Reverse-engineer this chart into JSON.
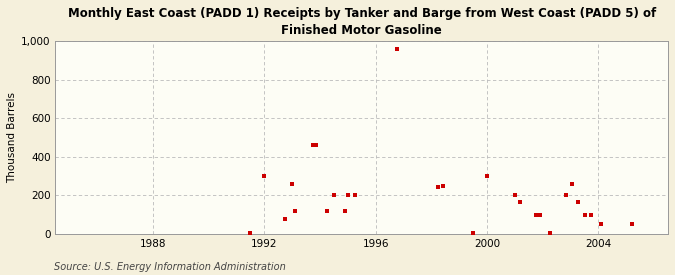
{
  "title": "East Coast (PADD 1) Receipts by Tanker and Barge from West Coast (PADD 5) of\nFinished Motor Gasoline",
  "title_prefix": "Monthly ",
  "ylabel": "Thousand Barrels",
  "source": "Source: U.S. Energy Information Administration",
  "background_color": "#f5f0dc",
  "plot_bg_color": "#fdfdf5",
  "marker_color": "#cc0000",
  "grid_color": "#bbbbbb",
  "spine_color": "#999999",
  "xlim": [
    1984.5,
    2006.5
  ],
  "ylim": [
    0,
    1000
  ],
  "yticks": [
    0,
    200,
    400,
    600,
    800,
    1000
  ],
  "ytick_labels": [
    "0",
    "200",
    "400",
    "600",
    "800",
    "1,000"
  ],
  "xticks": [
    1988,
    1992,
    1996,
    2000,
    2004
  ],
  "data_x": [
    1991.5,
    1992.0,
    1992.75,
    1993.0,
    1993.1,
    1993.75,
    1993.85,
    1994.25,
    1994.5,
    1994.9,
    1995.0,
    1995.25,
    1996.75,
    1998.25,
    1998.4,
    1999.5,
    2000.0,
    2001.0,
    2001.2,
    2001.75,
    2001.9,
    2002.25,
    2002.85,
    2003.05,
    2003.25,
    2003.5,
    2003.75,
    2004.1,
    2005.2
  ],
  "data_y": [
    5,
    300,
    75,
    260,
    120,
    460,
    460,
    120,
    200,
    120,
    200,
    200,
    960,
    245,
    250,
    5,
    300,
    200,
    165,
    100,
    100,
    5,
    200,
    260,
    165,
    100,
    100,
    50,
    50
  ]
}
